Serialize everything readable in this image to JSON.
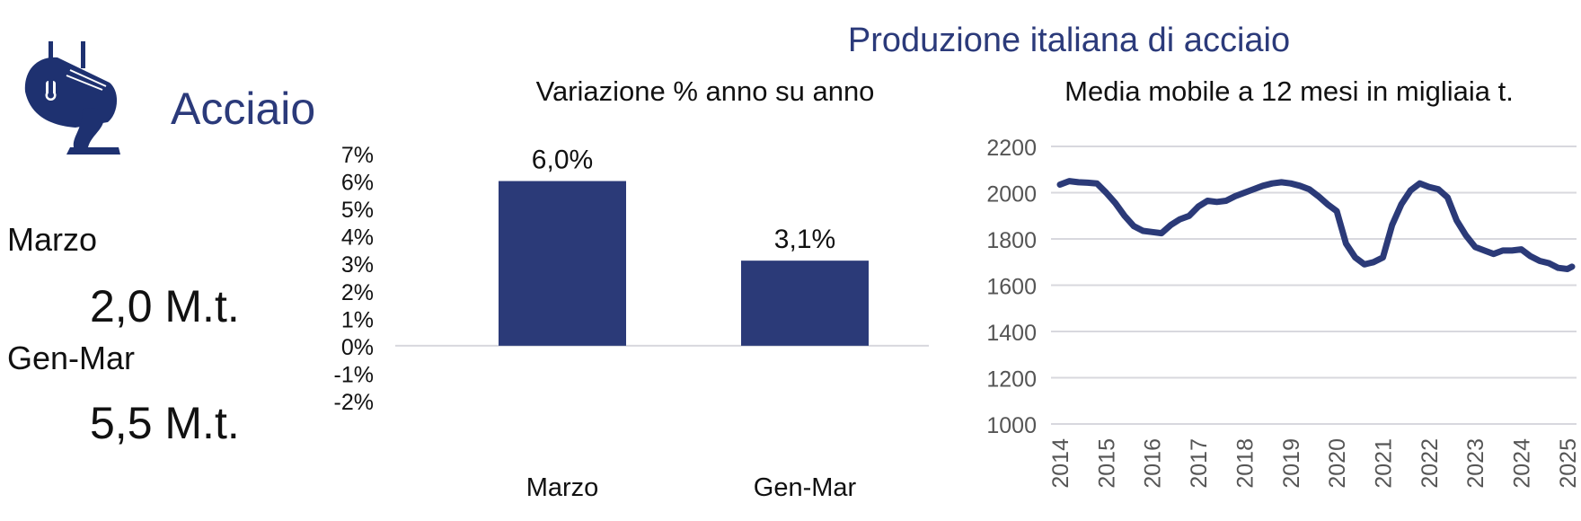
{
  "main_title": "Produzione italiana di acciaio",
  "brand": {
    "label": "Acciaio",
    "icon": "steel-ladle-icon",
    "color": "#1e3170"
  },
  "stats": [
    {
      "label": "Marzo",
      "value": "2,0 M.t."
    },
    {
      "label": "Gen-Mar",
      "value": "5,5 M.t."
    }
  ],
  "colors": {
    "accent": "#2b3a7a",
    "bar": "#2b3a78",
    "line": "#2b3a78",
    "grid": "#d8d8de"
  },
  "chart_data": [
    {
      "type": "bar",
      "title": "Variazione % anno su anno",
      "categories": [
        "Marzo",
        "Gen-Mar"
      ],
      "values": [
        6.0,
        3.1
      ],
      "data_labels": [
        "6,0%",
        "3,1%"
      ],
      "ylim": [
        -2,
        7
      ],
      "yticks": [
        7,
        6,
        5,
        4,
        3,
        2,
        1,
        0,
        -1,
        -2
      ],
      "ytick_labels": [
        "7%",
        "6%",
        "5%",
        "4%",
        "3%",
        "2%",
        "1%",
        "0%",
        "-1%",
        "-2%"
      ],
      "xlabel": "",
      "ylabel": "",
      "grid": false
    },
    {
      "type": "line",
      "title": "Media mobile a 12 mesi in migliaia t.",
      "ylim": [
        1000,
        2200
      ],
      "yticks": [
        2200,
        2000,
        1800,
        1600,
        1400,
        1200,
        1000
      ],
      "ytick_labels": [
        "2200",
        "2000",
        "1800",
        "1600",
        "1400",
        "1200",
        "1000"
      ],
      "xlim": [
        2014,
        2025.1
      ],
      "xticks": [
        2014,
        2015,
        2016,
        2017,
        2018,
        2019,
        2020,
        2021,
        2022,
        2023,
        2024,
        2025
      ],
      "xtick_labels": [
        "2014",
        "2015",
        "2016",
        "2017",
        "2018",
        "2019",
        "2020",
        "2021",
        "2022",
        "2023",
        "2024",
        "2025"
      ],
      "grid": true,
      "xlabel": "",
      "ylabel": "",
      "series": [
        {
          "x": [
            2014.0,
            2014.2,
            2014.4,
            2014.6,
            2014.8,
            2015.0,
            2015.2,
            2015.4,
            2015.6,
            2015.8,
            2016.0,
            2016.2,
            2016.4,
            2016.6,
            2016.8,
            2017.0,
            2017.2,
            2017.4,
            2017.6,
            2017.8,
            2018.0,
            2018.2,
            2018.4,
            2018.6,
            2018.8,
            2019.0,
            2019.2,
            2019.4,
            2019.6,
            2019.8,
            2020.0,
            2020.2,
            2020.4,
            2020.6,
            2020.8,
            2021.0,
            2021.2,
            2021.4,
            2021.6,
            2021.8,
            2022.0,
            2022.2,
            2022.4,
            2022.6,
            2022.8,
            2023.0,
            2023.2,
            2023.4,
            2023.6,
            2023.8,
            2024.0,
            2024.2,
            2024.4,
            2024.6,
            2024.8,
            2025.0,
            2025.1
          ],
          "y": [
            2035,
            2050,
            2045,
            2043,
            2040,
            2000,
            1955,
            1900,
            1855,
            1835,
            1830,
            1825,
            1860,
            1885,
            1900,
            1940,
            1965,
            1960,
            1965,
            1985,
            2000,
            2015,
            2030,
            2040,
            2045,
            2040,
            2030,
            2015,
            1985,
            1950,
            1920,
            1780,
            1720,
            1690,
            1700,
            1720,
            1860,
            1950,
            2010,
            2040,
            2025,
            2015,
            1980,
            1880,
            1815,
            1765,
            1750,
            1735,
            1750,
            1750,
            1755,
            1725,
            1705,
            1695,
            1675,
            1670,
            1680
          ]
        }
      ]
    }
  ]
}
